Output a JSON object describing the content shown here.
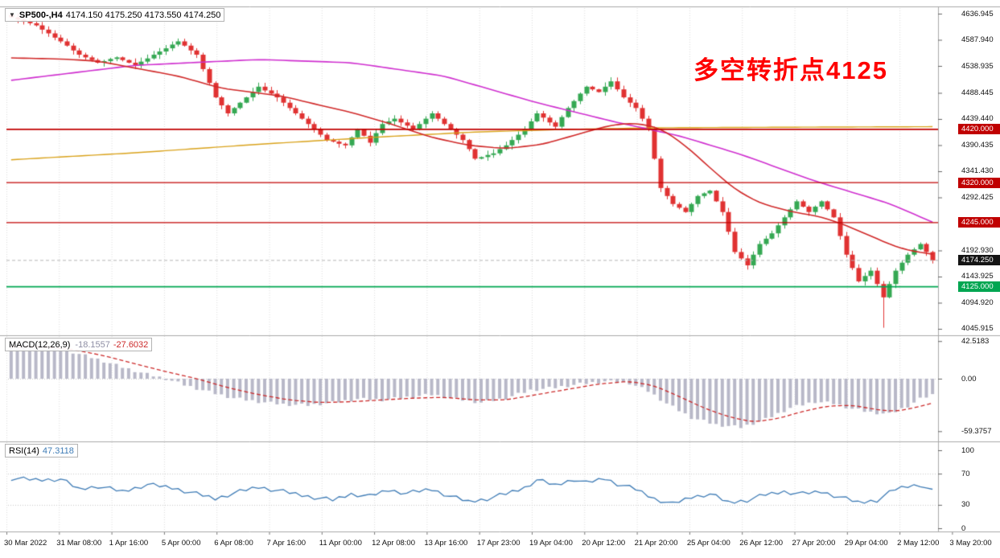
{
  "header": {
    "symbol_period": "SP500-,H4",
    "ohlc_text": "4174.150 4175.250 4173.550 4174.250"
  },
  "annotation": {
    "text": "多空转折点4125",
    "color": "#fe0000"
  },
  "indicators": {
    "macd": {
      "name": "MACD(12,26,9)",
      "value_main": "-18.1557",
      "value_signal": "-27.6032"
    },
    "rsi": {
      "name": "RSI(14)",
      "value": "47.3118"
    }
  },
  "chart_data": [
    {
      "type": "candlestick",
      "title": "SP500-,H4",
      "up_color": "#35a853",
      "down_color": "#e03232",
      "first_open": 4635,
      "closes": [
        4630,
        4626,
        4622,
        4619,
        4615,
        4607,
        4600,
        4592,
        4585,
        4577,
        4568,
        4560,
        4555,
        4550,
        4545,
        4548,
        4552,
        4555,
        4550,
        4545,
        4540,
        4547,
        4553,
        4560,
        4566,
        4572,
        4579,
        4585,
        4577,
        4568,
        4560,
        4533,
        4507,
        4480,
        4465,
        4450,
        4460,
        4470,
        4480,
        4490,
        4500,
        4493,
        4487,
        4480,
        4470,
        4460,
        4450,
        4440,
        4430,
        4420,
        4410,
        4400,
        4397,
        4393,
        4390,
        4405,
        4420,
        4408,
        4395,
        4413,
        4430,
        4435,
        4440,
        4433,
        4427,
        4420,
        4430,
        4440,
        4450,
        4440,
        4430,
        4420,
        4410,
        4400,
        4383,
        4365,
        4368,
        4372,
        4375,
        4383,
        4390,
        4400,
        4410,
        4420,
        4435,
        4450,
        4442,
        4433,
        4425,
        4443,
        4460,
        4473,
        4487,
        4500,
        4495,
        4490,
        4500,
        4510,
        4495,
        4480,
        4470,
        4460,
        4440,
        4420,
        4365,
        4310,
        4295,
        4280,
        4273,
        4265,
        4280,
        4295,
        4300,
        4305,
        4285,
        4265,
        4228,
        4190,
        4178,
        4165,
        4185,
        4205,
        4215,
        4225,
        4240,
        4255,
        4270,
        4285,
        4275,
        4265,
        4275,
        4285,
        4270,
        4255,
        4220,
        4185,
        4160,
        4135,
        4145,
        4155,
        4130,
        4105,
        4130,
        4155,
        4170,
        4185,
        4195,
        4205,
        4190,
        4174.25
      ],
      "special_lows": {
        "141": 4048
      },
      "special_highs": {
        "0": 4637
      },
      "y_ticks": [
        "4636.945",
        "4587.940",
        "4538.935",
        "4488.445",
        "4439.440",
        "4390.435",
        "4341.430",
        "4292.425",
        "4192.930",
        "4143.925",
        "4094.920",
        "4045.915"
      ],
      "badges": [
        {
          "text": "4420.000",
          "price": 4420.0,
          "bg": "#c00000"
        },
        {
          "text": "4320.000",
          "price": 4320.0,
          "bg": "#c00000"
        },
        {
          "text": "4245.000",
          "price": 4245.0,
          "bg": "#c00000"
        },
        {
          "text": "4174.250",
          "price": 4174.25,
          "bg": "#141414"
        },
        {
          "text": "4125.000",
          "price": 4125.0,
          "bg": "#00a651"
        }
      ],
      "h_lines": [
        {
          "price": 4420.0,
          "color": "#c00000",
          "width": 1.7
        },
        {
          "price": 4320.0,
          "color": "#c00000",
          "width": 1.2
        },
        {
          "price": 4245.0,
          "color": "#c00000",
          "width": 1.2
        },
        {
          "price": 4125.0,
          "color": "#00a651",
          "width": 1.7
        }
      ],
      "bid_line": {
        "price": 4174.25,
        "color": "#b4b4b4"
      },
      "current_price": "4174.250",
      "overlays": [
        {
          "name": "ma-orange",
          "color": "#d9a21b",
          "width": 1.4,
          "points": [
            [
              0,
              4363
            ],
            [
              20,
              4376
            ],
            [
              40,
              4392
            ],
            [
              60,
              4406
            ],
            [
              75,
              4415
            ],
            [
              90,
              4420
            ],
            [
              105,
              4423
            ],
            [
              125,
              4424
            ],
            [
              149,
              4425
            ]
          ]
        },
        {
          "name": "ma-magenta",
          "color": "#cf2fcf",
          "width": 1.6,
          "points": [
            [
              0,
              4512
            ],
            [
              20,
              4540
            ],
            [
              40,
              4551
            ],
            [
              55,
              4545
            ],
            [
              70,
              4520
            ],
            [
              85,
              4470
            ],
            [
              98,
              4433
            ],
            [
              108,
              4408
            ],
            [
              118,
              4373
            ],
            [
              130,
              4323
            ],
            [
              142,
              4281
            ],
            [
              149,
              4246
            ]
          ]
        },
        {
          "name": "ma-red",
          "color": "#d02828",
          "width": 1.6,
          "points": [
            [
              0,
              4554
            ],
            [
              8,
              4552
            ],
            [
              14,
              4548
            ],
            [
              20,
              4535
            ],
            [
              27,
              4520
            ],
            [
              34,
              4497
            ],
            [
              44,
              4482
            ],
            [
              50,
              4465
            ],
            [
              55,
              4452
            ],
            [
              62,
              4428
            ],
            [
              68,
              4405
            ],
            [
              74,
              4390
            ],
            [
              80,
              4384
            ],
            [
              86,
              4392
            ],
            [
              92,
              4412
            ],
            [
              97,
              4428
            ],
            [
              101,
              4432
            ],
            [
              105,
              4422
            ],
            [
              109,
              4390
            ],
            [
              113,
              4348
            ],
            [
              117,
              4308
            ],
            [
              121,
              4282
            ],
            [
              126,
              4266
            ],
            [
              131,
              4256
            ],
            [
              135,
              4240
            ],
            [
              139,
              4220
            ],
            [
              143,
              4200
            ],
            [
              146,
              4191
            ],
            [
              149,
              4186
            ]
          ]
        }
      ],
      "x_labels": [
        "30 Mar 2022",
        "31 Mar 08:00",
        "1 Apr 16:00",
        "5 Apr 00:00",
        "6 Apr 08:00",
        "7 Apr 16:00",
        "11 Apr 00:00",
        "12 Apr 08:00",
        "13 Apr 16:00",
        "17 Apr 23:00",
        "19 Apr 04:00",
        "20 Apr 12:00",
        "21 Apr 20:00",
        "25 Apr 04:00",
        "26 Apr 12:00",
        "27 Apr 20:00",
        "29 Apr 04:00",
        "2 May 12:00",
        "3 May 20:00"
      ]
    },
    {
      "type": "macd-histogram",
      "label": "MACD(12,26,9)",
      "value_main": -18.1557,
      "value_signal": -27.6032,
      "histogram_color": "#b8b8c8",
      "signal_color": "#cc2a2a",
      "y_ticks": [
        "42.5183",
        "0.00",
        "-59.3757"
      ],
      "main_waypoints": [
        [
          0,
          40
        ],
        [
          3,
          39
        ],
        [
          6,
          36
        ],
        [
          10,
          30
        ],
        [
          14,
          22
        ],
        [
          18,
          13
        ],
        [
          22,
          5
        ],
        [
          25,
          0
        ],
        [
          28,
          -7
        ],
        [
          32,
          -15
        ],
        [
          36,
          -22
        ],
        [
          40,
          -26
        ],
        [
          44,
          -29
        ],
        [
          48,
          -30
        ],
        [
          52,
          -27
        ],
        [
          56,
          -23
        ],
        [
          60,
          -24
        ],
        [
          64,
          -21
        ],
        [
          68,
          -18
        ],
        [
          72,
          -23
        ],
        [
          76,
          -27
        ],
        [
          80,
          -22
        ],
        [
          84,
          -13
        ],
        [
          88,
          -10
        ],
        [
          92,
          -6
        ],
        [
          96,
          -3
        ],
        [
          100,
          -5
        ],
        [
          103,
          -14
        ],
        [
          106,
          -28
        ],
        [
          110,
          -44
        ],
        [
          114,
          -52
        ],
        [
          118,
          -55
        ],
        [
          122,
          -46
        ],
        [
          126,
          -33
        ],
        [
          130,
          -26
        ],
        [
          133,
          -28
        ],
        [
          136,
          -34
        ],
        [
          139,
          -38
        ],
        [
          142,
          -40
        ],
        [
          145,
          -31
        ],
        [
          147,
          -23
        ],
        [
          149,
          -18.16
        ]
      ],
      "signal_waypoints": [
        [
          0,
          36
        ],
        [
          5,
          36
        ],
        [
          10,
          33
        ],
        [
          15,
          26
        ],
        [
          20,
          17
        ],
        [
          25,
          8
        ],
        [
          30,
          0
        ],
        [
          35,
          -10
        ],
        [
          40,
          -18
        ],
        [
          45,
          -24
        ],
        [
          50,
          -27
        ],
        [
          55,
          -26
        ],
        [
          60,
          -24
        ],
        [
          65,
          -22
        ],
        [
          70,
          -21
        ],
        [
          75,
          -24
        ],
        [
          80,
          -24
        ],
        [
          85,
          -18
        ],
        [
          90,
          -12
        ],
        [
          95,
          -6
        ],
        [
          100,
          -3
        ],
        [
          104,
          -8
        ],
        [
          108,
          -20
        ],
        [
          112,
          -33
        ],
        [
          116,
          -43
        ],
        [
          120,
          -49
        ],
        [
          124,
          -45
        ],
        [
          128,
          -37
        ],
        [
          132,
          -31
        ],
        [
          136,
          -30
        ],
        [
          140,
          -35
        ],
        [
          143,
          -37
        ],
        [
          146,
          -33
        ],
        [
          149,
          -27.6
        ]
      ]
    },
    {
      "type": "rsi-line",
      "label": "RSI(14)",
      "value": 47.3118,
      "line_color": "#3f7cb6",
      "y_ticks": [
        "100",
        "70",
        "30",
        "0"
      ],
      "levels": [
        70,
        30
      ],
      "waypoints": [
        [
          0,
          64
        ],
        [
          4,
          62
        ],
        [
          8,
          63
        ],
        [
          11,
          50
        ],
        [
          14,
          54
        ],
        [
          18,
          47
        ],
        [
          22,
          56
        ],
        [
          26,
          52
        ],
        [
          30,
          44
        ],
        [
          33,
          38
        ],
        [
          36,
          45
        ],
        [
          40,
          53
        ],
        [
          44,
          47
        ],
        [
          48,
          41
        ],
        [
          52,
          36
        ],
        [
          55,
          44
        ],
        [
          58,
          41
        ],
        [
          61,
          49
        ],
        [
          64,
          45
        ],
        [
          68,
          50
        ],
        [
          71,
          41
        ],
        [
          74,
          34
        ],
        [
          77,
          38
        ],
        [
          80,
          44
        ],
        [
          83,
          52
        ],
        [
          85,
          62
        ],
        [
          88,
          55
        ],
        [
          91,
          63
        ],
        [
          93,
          58
        ],
        [
          96,
          64
        ],
        [
          98,
          57
        ],
        [
          101,
          50
        ],
        [
          104,
          38
        ],
        [
          107,
          31
        ],
        [
          110,
          40
        ],
        [
          113,
          44
        ],
        [
          116,
          33
        ],
        [
          119,
          36
        ],
        [
          122,
          43
        ],
        [
          125,
          47
        ],
        [
          128,
          44
        ],
        [
          131,
          47
        ],
        [
          134,
          40
        ],
        [
          137,
          33
        ],
        [
          140,
          36
        ],
        [
          143,
          50
        ],
        [
          145,
          54
        ],
        [
          147,
          56
        ],
        [
          149,
          47.31
        ]
      ]
    }
  ]
}
